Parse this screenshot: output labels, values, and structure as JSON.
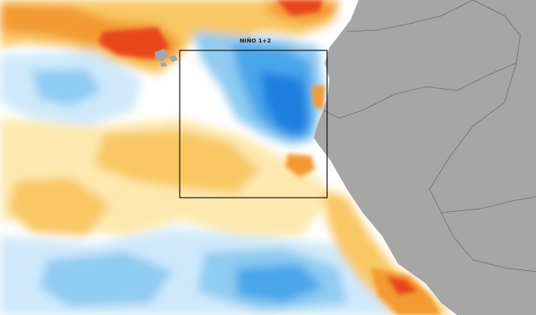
{
  "map": {
    "region_label": "NIÑO 1+2",
    "colors": {
      "land": "#a6a6a6",
      "land_border": "#6b6b6b",
      "neutral_sea": "#ffffff",
      "cool_light": "#cfe9fb",
      "cool": "#8fcbf2",
      "cool_strong": "#4aa6ea",
      "cool_deep": "#1f7fe0",
      "warm_light": "#fde9b0",
      "warm": "#f9c763",
      "warm_strong": "#f39a32",
      "hot": "#e8461c",
      "hot_core": "#c81a0e",
      "box_outline": "#111111"
    }
  }
}
